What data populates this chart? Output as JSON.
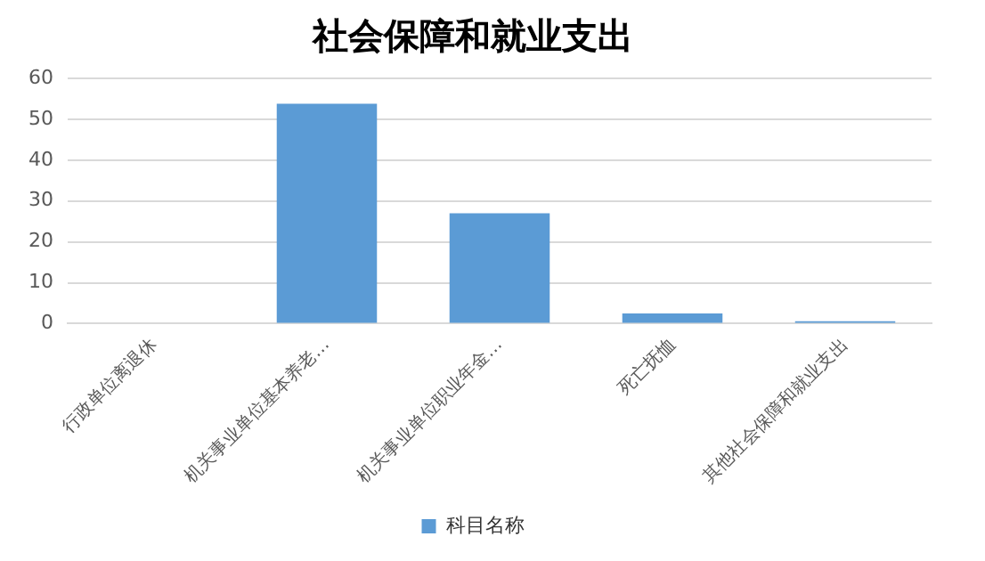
{
  "chart_data": {
    "type": "bar",
    "title": "社会保障和就业支出",
    "categories": [
      "行政单位离退休",
      "机关事业单位基本养老…",
      "机关事业单位职业年金…",
      "死亡抚恤",
      "其他社会保障和就业支出"
    ],
    "series": [
      {
        "name": "科目名称",
        "color": "#5b9bd5",
        "values": [
          0,
          53.8,
          27,
          2.5,
          0.6
        ]
      }
    ],
    "ylim": [
      0,
      60
    ],
    "yticks": [
      0,
      10,
      20,
      30,
      40,
      50,
      60
    ],
    "grid": "y",
    "legend": "bottom"
  }
}
